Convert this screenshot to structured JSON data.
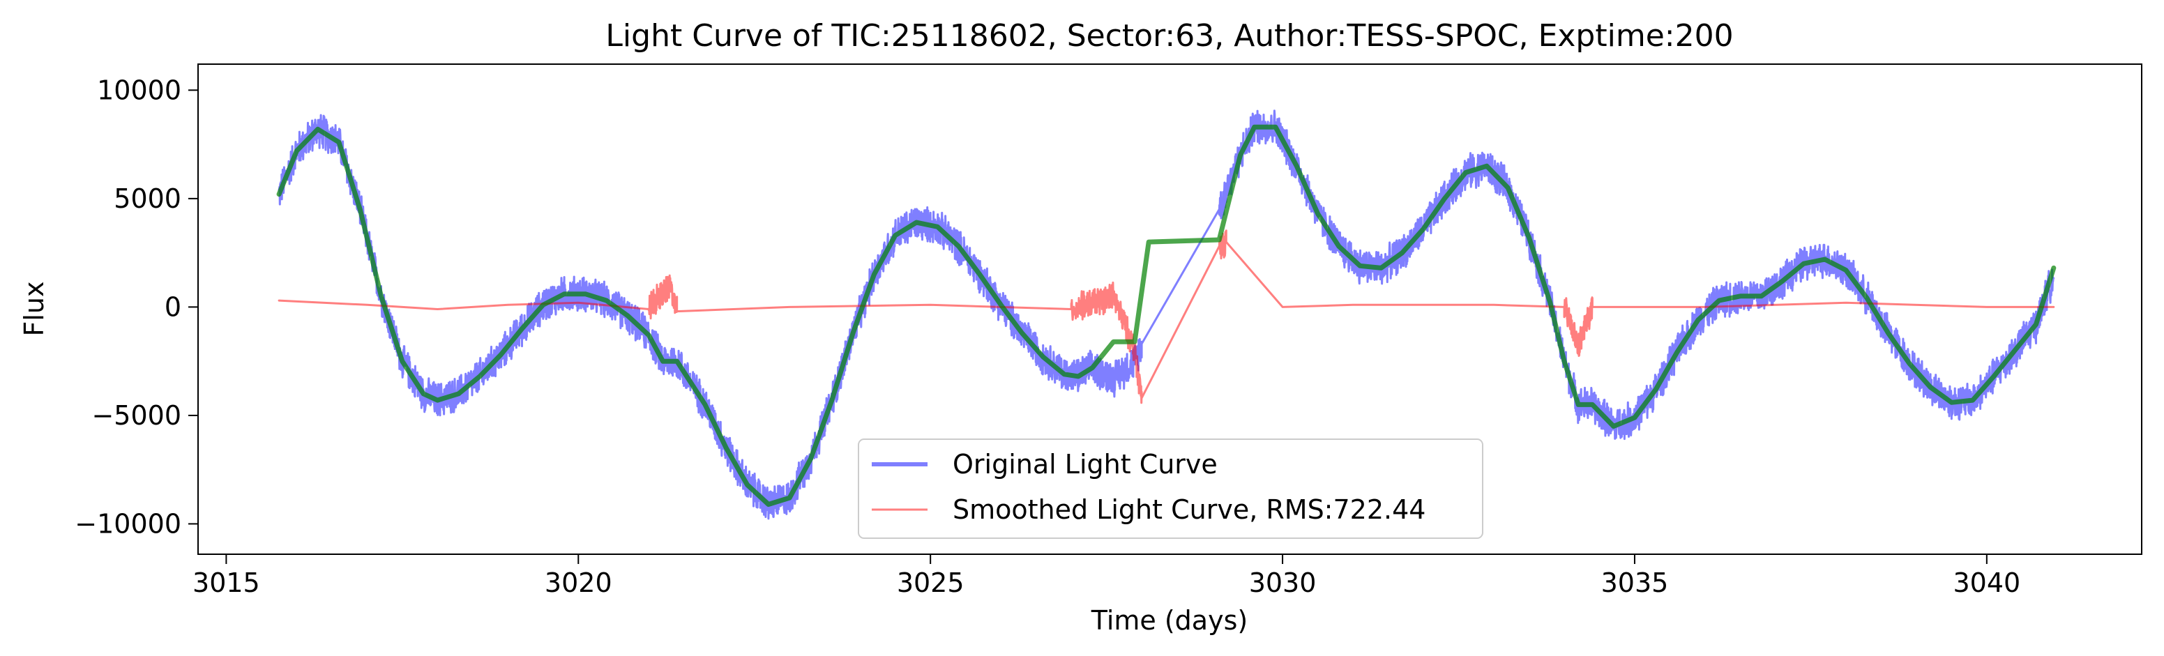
{
  "chart_data": {
    "type": "line",
    "title": "Light Curve of TIC:25118602, Sector:63, Author:TESS-SPOC, Exptime:200",
    "xlabel": "Time (days)",
    "ylabel": "Flux",
    "xlim": [
      3014.6,
      3042.2
    ],
    "ylim": [
      -11400,
      11200
    ],
    "xticks": [
      3015,
      3020,
      3025,
      3030,
      3035,
      3040
    ],
    "xtick_labels": [
      "3015",
      "3020",
      "3025",
      "3030",
      "3035",
      "3040"
    ],
    "yticks": [
      -10000,
      -5000,
      0,
      5000,
      10000
    ],
    "ytick_labels": [
      "−10000",
      "−5000",
      "0",
      "5000",
      "10000"
    ],
    "grid": false,
    "legend": {
      "position": "lower-center"
    },
    "series": [
      {
        "name": "Original Light Curve",
        "color": "#0000ff",
        "opacity": 0.5,
        "noise_amplitude": 900,
        "x": [
          3015.75,
          3016.0,
          3016.3,
          3016.6,
          3016.9,
          3017.2,
          3017.5,
          3017.8,
          3018.0,
          3018.3,
          3018.6,
          3018.9,
          3019.2,
          3019.5,
          3019.8,
          3020.1,
          3020.4,
          3020.7,
          3021.0,
          3021.2,
          3021.4,
          3021.8,
          3022.1,
          3022.4,
          3022.7,
          3023.0,
          3023.3,
          3023.6,
          3023.9,
          3024.2,
          3024.5,
          3024.8,
          3025.1,
          3025.4,
          3025.7,
          3026.0,
          3026.3,
          3026.6,
          3026.9,
          3027.1,
          3027.3,
          3027.6,
          3027.9,
          3028.0,
          3029.1,
          3029.4,
          3029.6,
          3029.9,
          3030.2,
          3030.5,
          3030.8,
          3031.1,
          3031.4,
          3031.7,
          3032.0,
          3032.3,
          3032.6,
          3032.9,
          3033.2,
          3033.5,
          3033.8,
          3034.0,
          3034.2,
          3034.4,
          3034.7,
          3035.0,
          3035.3,
          3035.6,
          3035.9,
          3036.2,
          3036.5,
          3036.8,
          3037.1,
          3037.4,
          3037.7,
          3038.0,
          3038.3,
          3038.6,
          3038.9,
          3039.2,
          3039.5,
          3039.8,
          3040.1,
          3040.4,
          3040.7,
          3040.95
        ],
        "y": [
          5200,
          7200,
          8200,
          7600,
          4500,
          500,
          -2500,
          -4000,
          -4300,
          -4000,
          -3200,
          -2200,
          -1000,
          100,
          600,
          600,
          300,
          -400,
          -1300,
          -2500,
          -2500,
          -4500,
          -6500,
          -8200,
          -9100,
          -8800,
          -7000,
          -4300,
          -1200,
          1500,
          3300,
          3900,
          3700,
          2800,
          1500,
          100,
          -1200,
          -2300,
          -3100,
          -3200,
          -2800,
          -3300,
          -2500,
          -1700,
          4500,
          7000,
          8300,
          8300,
          6500,
          4300,
          2800,
          1900,
          1800,
          2500,
          3600,
          5000,
          6200,
          6500,
          5500,
          3200,
          200,
          -2500,
          -4500,
          -4500,
          -5500,
          -5100,
          -3800,
          -2100,
          -600,
          300,
          500,
          500,
          1200,
          2000,
          2200,
          1700,
          400,
          -1200,
          -2600,
          -3700,
          -4400,
          -4300,
          -3200,
          -2000,
          -800,
          1500
        ]
      },
      {
        "name": "Smoothed Light Curve, RMS:722.44",
        "color": "#ff0000",
        "opacity": 0.5,
        "noise_amplitude": 720,
        "x": [
          3015.75,
          3017.0,
          3018.0,
          3019.0,
          3020.0,
          3021.0,
          3021.3,
          3021.4,
          3023.0,
          3025.0,
          3027.0,
          3027.6,
          3027.9,
          3028.0,
          3029.1,
          3029.2,
          3030.0,
          3031.0,
          3033.0,
          3034.0,
          3034.2,
          3034.4,
          3036.0,
          3038.0,
          3040.0,
          3040.95
        ],
        "y": [
          300,
          100,
          -100,
          100,
          200,
          -100,
          1000,
          -200,
          0,
          100,
          -100,
          500,
          -2000,
          -4200,
          2800,
          3000,
          0,
          100,
          100,
          0,
          -1800,
          0,
          0,
          200,
          0,
          0
        ]
      },
      {
        "name": "",
        "color": "#008000",
        "opacity": 0.7,
        "noise_amplitude": 0,
        "x": [
          3015.75,
          3016.0,
          3016.3,
          3016.6,
          3016.9,
          3017.2,
          3017.5,
          3017.8,
          3018.0,
          3018.3,
          3018.6,
          3018.9,
          3019.2,
          3019.5,
          3019.8,
          3020.1,
          3020.4,
          3020.7,
          3021.0,
          3021.2,
          3021.4,
          3021.8,
          3022.1,
          3022.4,
          3022.7,
          3023.0,
          3023.3,
          3023.6,
          3023.9,
          3024.2,
          3024.5,
          3024.8,
          3025.1,
          3025.4,
          3025.7,
          3026.0,
          3026.3,
          3026.6,
          3026.9,
          3027.1,
          3027.3,
          3027.6,
          3027.9,
          3028.0,
          3028.1,
          3029.1,
          3029.2,
          3029.4,
          3029.6,
          3029.9,
          3030.2,
          3030.5,
          3030.8,
          3031.1,
          3031.4,
          3031.7,
          3032.0,
          3032.3,
          3032.6,
          3032.9,
          3033.2,
          3033.5,
          3033.8,
          3034.0,
          3034.2,
          3034.4,
          3034.7,
          3035.0,
          3035.3,
          3035.6,
          3035.9,
          3036.2,
          3036.5,
          3036.8,
          3037.1,
          3037.4,
          3037.7,
          3038.0,
          3038.3,
          3038.6,
          3038.9,
          3039.2,
          3039.5,
          3039.8,
          3040.1,
          3040.4,
          3040.7,
          3040.95
        ],
        "y": [
          5200,
          7200,
          8200,
          7600,
          4500,
          500,
          -2500,
          -4000,
          -4300,
          -4000,
          -3200,
          -2200,
          -1000,
          100,
          600,
          600,
          300,
          -400,
          -1300,
          -2500,
          -2500,
          -4500,
          -6500,
          -8200,
          -9100,
          -8800,
          -7000,
          -4300,
          -1200,
          1500,
          3300,
          3900,
          3700,
          2800,
          1500,
          100,
          -1200,
          -2300,
          -3100,
          -3200,
          -2800,
          -1600,
          -1600,
          700,
          3000,
          3100,
          4400,
          7000,
          8300,
          8300,
          6500,
          4300,
          2800,
          1900,
          1800,
          2500,
          3600,
          5000,
          6200,
          6500,
          5500,
          3200,
          200,
          -2500,
          -4500,
          -4500,
          -5500,
          -5100,
          -3800,
          -2100,
          -600,
          300,
          500,
          500,
          1200,
          2000,
          2200,
          1700,
          400,
          -1200,
          -2600,
          -3700,
          -4400,
          -4300,
          -3200,
          -2000,
          -800,
          1800
        ]
      }
    ]
  }
}
